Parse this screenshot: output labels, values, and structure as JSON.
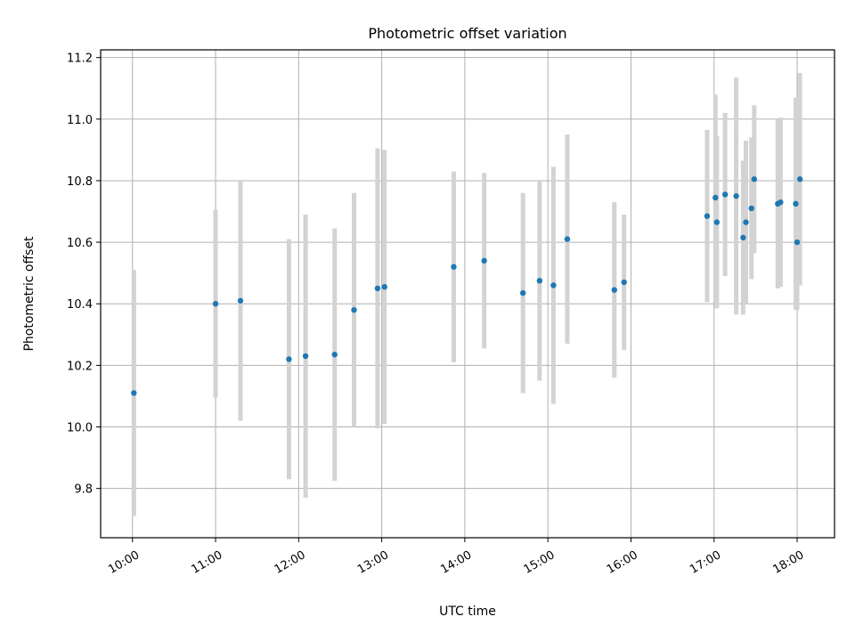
{
  "chart_data": {
    "type": "scatter",
    "title": "Photometric offset variation",
    "xlabel": "UTC time",
    "ylabel": "Photometric offset",
    "x_ticks": [
      "10:00",
      "11:00",
      "12:00",
      "13:00",
      "14:00",
      "15:00",
      "16:00",
      "17:00",
      "18:00"
    ],
    "y_ticks": [
      "9.8",
      "10.0",
      "10.2",
      "10.4",
      "10.6",
      "10.8",
      "11.0",
      "11.2"
    ],
    "xlim": [
      "09:37",
      "18:27"
    ],
    "ylim": [
      9.64,
      11.225
    ],
    "grid": true,
    "series": [
      {
        "color": "#1f77b4",
        "error_color": "#d3d3d3",
        "points": [
          {
            "t": "10:01",
            "y": 10.11,
            "err": 0.4
          },
          {
            "t": "11:00",
            "y": 10.4,
            "err": 0.305
          },
          {
            "t": "11:18",
            "y": 10.41,
            "err": 0.39
          },
          {
            "t": "11:53",
            "y": 10.22,
            "err": 0.39
          },
          {
            "t": "12:05",
            "y": 10.23,
            "err": 0.46
          },
          {
            "t": "12:26",
            "y": 10.235,
            "err": 0.41
          },
          {
            "t": "12:40",
            "y": 10.38,
            "err": 0.38
          },
          {
            "t": "12:57",
            "y": 10.45,
            "err": 0.455
          },
          {
            "t": "13:02",
            "y": 10.455,
            "err": 0.445
          },
          {
            "t": "13:52",
            "y": 10.52,
            "err": 0.31
          },
          {
            "t": "14:14",
            "y": 10.54,
            "err": 0.285
          },
          {
            "t": "14:42",
            "y": 10.435,
            "err": 0.325
          },
          {
            "t": "14:54",
            "y": 10.475,
            "err": 0.325
          },
          {
            "t": "15:04",
            "y": 10.46,
            "err": 0.385
          },
          {
            "t": "15:14",
            "y": 10.61,
            "err": 0.34
          },
          {
            "t": "15:48",
            "y": 10.445,
            "err": 0.285
          },
          {
            "t": "15:55",
            "y": 10.47,
            "err": 0.22
          },
          {
            "t": "16:55",
            "y": 10.685,
            "err": 0.28
          },
          {
            "t": "17:01",
            "y": 10.745,
            "err": 0.335
          },
          {
            "t": "17:02",
            "y": 10.665,
            "err": 0.28
          },
          {
            "t": "17:08",
            "y": 10.755,
            "err": 0.265
          },
          {
            "t": "17:16",
            "y": 10.75,
            "err": 0.385
          },
          {
            "t": "17:21",
            "y": 10.615,
            "err": 0.25
          },
          {
            "t": "17:23",
            "y": 10.665,
            "err": 0.265
          },
          {
            "t": "17:27",
            "y": 10.71,
            "err": 0.23
          },
          {
            "t": "17:29",
            "y": 10.805,
            "err": 0.24
          },
          {
            "t": "17:46",
            "y": 10.725,
            "err": 0.275
          },
          {
            "t": "17:48",
            "y": 10.73,
            "err": 0.275
          },
          {
            "t": "17:59",
            "y": 10.725,
            "err": 0.345
          },
          {
            "t": "18:00",
            "y": 10.6,
            "err": 0.22
          },
          {
            "t": "18:02",
            "y": 10.805,
            "err": 0.345
          }
        ]
      }
    ]
  }
}
